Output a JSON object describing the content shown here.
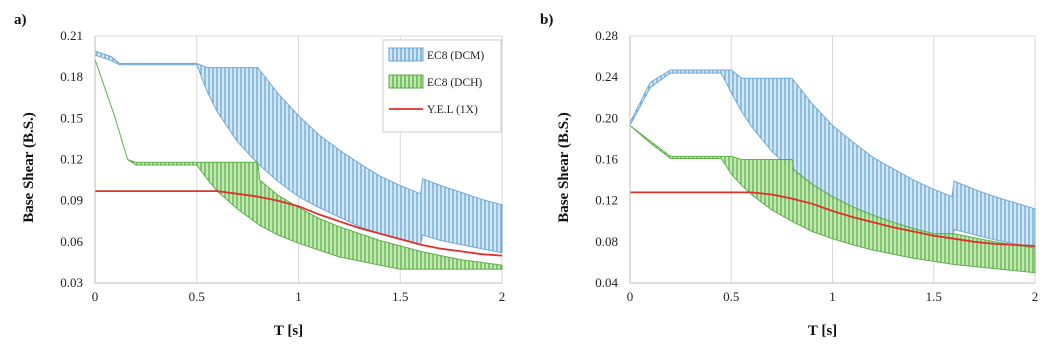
{
  "chart_data": [
    {
      "panel_label": "a)",
      "type": "area",
      "xlabel": "T [s]",
      "ylabel": "Base Shear (B.S.)",
      "xlim": [
        0,
        2
      ],
      "ylim": [
        0.03,
        0.21
      ],
      "xticks": [
        0,
        0.5,
        1,
        1.5,
        2
      ],
      "xtick_labels": [
        "0",
        "0.5",
        "1",
        "1.5",
        "2"
      ],
      "yticks": [
        0.03,
        0.06,
        0.09,
        0.12,
        0.15,
        0.18,
        0.21
      ],
      "ytick_labels": [
        "0.03",
        "0.06",
        "0.09",
        "0.12",
        "0.15",
        "0.18",
        "0.21"
      ],
      "grid": "vertical",
      "legend_position": "top-right",
      "legend": [
        "EC8 (DCM)",
        "EC8 (DCH)",
        "Y.E.L (1X)"
      ],
      "series": [
        {
          "name": "EC8 (DCM)",
          "color": "#9ac8e8",
          "x": [
            0,
            0.08,
            0.12,
            0.5,
            0.55,
            0.6,
            0.7,
            0.8,
            0.9,
            1.0,
            1.1,
            1.2,
            1.3,
            1.4,
            1.5,
            1.6,
            1.61,
            1.7,
            1.8,
            1.9,
            2.0
          ],
          "upper": [
            0.199,
            0.195,
            0.19,
            0.19,
            0.187,
            0.187,
            0.187,
            0.187,
            0.168,
            0.152,
            0.138,
            0.127,
            0.117,
            0.108,
            0.101,
            0.095,
            0.106,
            0.101,
            0.096,
            0.091,
            0.087
          ],
          "lower": [
            0.196,
            0.192,
            0.189,
            0.189,
            0.17,
            0.155,
            0.133,
            0.117,
            0.104,
            0.093,
            0.085,
            0.078,
            0.071,
            0.066,
            0.062,
            0.058,
            0.065,
            0.061,
            0.058,
            0.055,
            0.052
          ]
        },
        {
          "name": "EC8 (DCH)",
          "color": "#8fd47a",
          "x": [
            0,
            0.1,
            0.16,
            0.2,
            0.5,
            0.55,
            0.6,
            0.7,
            0.8,
            0.81,
            0.9,
            1.0,
            1.1,
            1.2,
            1.3,
            1.4,
            1.5,
            1.6,
            1.7,
            1.8,
            1.9,
            2.0
          ],
          "upper": [
            0.193,
            0.15,
            0.12,
            0.118,
            0.118,
            0.118,
            0.118,
            0.118,
            0.118,
            0.105,
            0.094,
            0.085,
            0.077,
            0.071,
            0.066,
            0.061,
            0.057,
            0.053,
            0.05,
            0.047,
            0.045,
            0.043
          ],
          "lower": [
            0.193,
            0.15,
            0.12,
            0.116,
            0.116,
            0.106,
            0.097,
            0.084,
            0.073,
            0.072,
            0.065,
            0.059,
            0.054,
            0.049,
            0.046,
            0.043,
            0.04,
            0.04,
            0.04,
            0.04,
            0.04,
            0.04
          ]
        },
        {
          "name": "Y.E.L (1X)",
          "color": "#e0302a",
          "x": [
            0,
            0.6,
            0.7,
            0.8,
            0.9,
            1.0,
            1.1,
            1.2,
            1.3,
            1.4,
            1.5,
            1.6,
            1.7,
            1.8,
            1.9,
            2.0
          ],
          "line": [
            0.097,
            0.097,
            0.095,
            0.093,
            0.09,
            0.086,
            0.08,
            0.075,
            0.07,
            0.066,
            0.062,
            0.058,
            0.055,
            0.053,
            0.051,
            0.05
          ]
        }
      ]
    },
    {
      "panel_label": "b)",
      "type": "area",
      "xlabel": "T [s]",
      "ylabel": "Base Shear (B.S.)",
      "xlim": [
        0,
        2
      ],
      "ylim": [
        0.04,
        0.28
      ],
      "xticks": [
        0,
        0.5,
        1,
        1.5,
        2
      ],
      "xtick_labels": [
        "0",
        "0.5",
        "1",
        "1.5",
        "2"
      ],
      "yticks": [
        0.04,
        0.08,
        0.12,
        0.16,
        0.2,
        0.24,
        0.28
      ],
      "ytick_labels": [
        "0.04",
        "0.08",
        "0.12",
        "0.16",
        "0.20",
        "0.24",
        "0.28"
      ],
      "grid": "vertical",
      "series": [
        {
          "name": "EC8 (DCM)",
          "color": "#9ac8e8",
          "x": [
            0,
            0.1,
            0.2,
            0.45,
            0.5,
            0.55,
            0.6,
            0.7,
            0.8,
            0.9,
            1.0,
            1.1,
            1.2,
            1.3,
            1.4,
            1.5,
            1.59,
            1.6,
            1.7,
            1.8,
            1.9,
            2.0
          ],
          "upper": [
            0.196,
            0.235,
            0.247,
            0.247,
            0.247,
            0.239,
            0.239,
            0.239,
            0.239,
            0.214,
            0.193,
            0.177,
            0.162,
            0.151,
            0.14,
            0.131,
            0.124,
            0.139,
            0.131,
            0.124,
            0.118,
            0.112
          ],
          "lower": [
            0.193,
            0.23,
            0.244,
            0.244,
            0.225,
            0.207,
            0.192,
            0.168,
            0.149,
            0.134,
            0.122,
            0.112,
            0.104,
            0.097,
            0.091,
            0.086,
            0.082,
            0.092,
            0.087,
            0.082,
            0.078,
            0.075
          ]
        },
        {
          "name": "EC8 (DCH)",
          "color": "#8fd47a",
          "x": [
            0,
            0.1,
            0.2,
            0.45,
            0.5,
            0.55,
            0.6,
            0.7,
            0.8,
            0.81,
            0.9,
            1.0,
            1.1,
            1.2,
            1.3,
            1.4,
            1.5,
            1.6,
            1.7,
            1.8,
            1.9,
            2.0
          ],
          "upper": [
            0.193,
            0.178,
            0.163,
            0.163,
            0.163,
            0.16,
            0.16,
            0.16,
            0.16,
            0.15,
            0.136,
            0.124,
            0.114,
            0.106,
            0.099,
            0.093,
            0.088,
            0.088,
            0.084,
            0.08,
            0.077,
            0.074
          ],
          "lower": [
            0.193,
            0.176,
            0.161,
            0.161,
            0.146,
            0.135,
            0.126,
            0.111,
            0.1,
            0.099,
            0.09,
            0.083,
            0.077,
            0.072,
            0.068,
            0.064,
            0.061,
            0.058,
            0.056,
            0.054,
            0.052,
            0.05
          ]
        },
        {
          "name": "Y.E.L (1X)",
          "color": "#e0302a",
          "x": [
            0,
            0.6,
            0.7,
            0.8,
            0.9,
            1.0,
            1.1,
            1.2,
            1.3,
            1.4,
            1.5,
            1.6,
            1.7,
            1.8,
            1.9,
            2.0
          ],
          "line": [
            0.128,
            0.128,
            0.126,
            0.122,
            0.117,
            0.11,
            0.104,
            0.099,
            0.094,
            0.09,
            0.086,
            0.083,
            0.08,
            0.078,
            0.077,
            0.076
          ]
        }
      ]
    }
  ]
}
